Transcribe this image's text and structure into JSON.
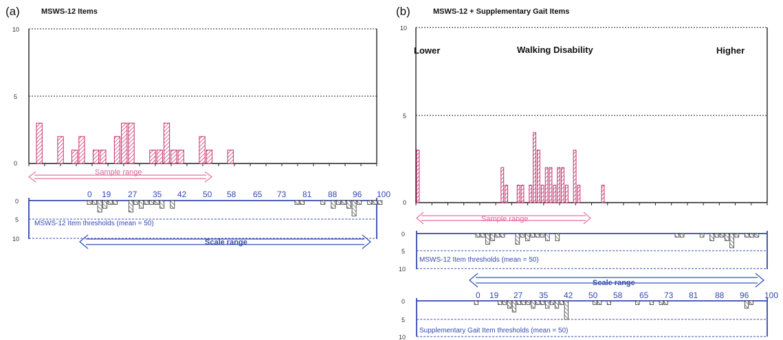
{
  "panels": {
    "a": {
      "letter": "(a)",
      "title": "MSWS-12 Items"
    },
    "b": {
      "letter": "(b)",
      "title": "MSWS-12 + Supplementary Gait Items"
    }
  },
  "labels": {
    "lower": "Lower",
    "walking_disability": "Walking Disability",
    "higher": "Higher",
    "sample_range": "Sample range",
    "scale_range": "Scale range",
    "msws_thresholds": "MSWS-12 Item thresholds (mean = 50)",
    "supp_thresholds": "Supplementary Gait Item thresholds (mean = 50)"
  },
  "colors": {
    "person_bar": "#c2185b",
    "threshold_bar": "#333333",
    "axis_blue": "#3348b0",
    "sample_arrow": "#e8709f",
    "scale_arrow": "#3355b5"
  },
  "chart_data": [
    {
      "id": "a-persons",
      "type": "bar",
      "title": "MSWS-12 Items",
      "xlim": [
        0,
        100
      ],
      "ylim": [
        0,
        10
      ],
      "yticks": [
        "0",
        "5",
        "10"
      ],
      "values": [
        3,
        0,
        0,
        2,
        0,
        1,
        2,
        0,
        1,
        1,
        0,
        2,
        3,
        3,
        0,
        0,
        1,
        1,
        3,
        1,
        1,
        0,
        0,
        2,
        1,
        0,
        0,
        1
      ]
    },
    {
      "id": "a-thresholds",
      "type": "bar",
      "title": "MSWS-12 Item thresholds (mean = 50)",
      "xlim": [
        0,
        100
      ],
      "ylim": [
        0,
        10
      ],
      "yticks": [
        "0",
        "5",
        "10"
      ],
      "scale_ticks": [
        "0",
        "19",
        "27",
        "35",
        "42",
        "50",
        "58",
        "65",
        "73",
        "81",
        "88",
        "96",
        "100"
      ],
      "values": [
        1,
        1,
        3,
        2,
        1,
        1,
        0,
        0,
        3,
        1,
        2,
        1,
        1,
        1,
        2,
        0,
        2,
        0,
        0,
        0,
        0,
        0,
        0,
        0,
        0,
        0,
        0,
        0,
        0,
        0,
        0,
        0,
        0,
        0,
        0,
        0,
        0,
        0,
        0,
        0,
        1,
        1,
        0,
        0,
        0,
        1,
        0,
        2,
        1,
        1,
        2,
        4,
        1,
        0,
        1,
        1,
        1
      ]
    },
    {
      "id": "b-persons",
      "type": "bar",
      "title": "MSWS-12 + Supplementary Gait Items",
      "xlim": [
        0,
        100
      ],
      "ylim": [
        0,
        10
      ],
      "yticks": [
        "0",
        "5",
        "10"
      ],
      "values": [
        3,
        0,
        0,
        0,
        0,
        0,
        0,
        0,
        0,
        0,
        0,
        0,
        0,
        0,
        0,
        0,
        0,
        0,
        0,
        0,
        0,
        2,
        1,
        0,
        0,
        1,
        1,
        0,
        1,
        4,
        3,
        1,
        2,
        2,
        1,
        2,
        2,
        1,
        0,
        3,
        1,
        0,
        0,
        0,
        0,
        0,
        1
      ]
    },
    {
      "id": "b-msws-thresholds",
      "type": "bar",
      "title": "MSWS-12 Item thresholds (mean = 50)",
      "xlim": [
        0,
        100
      ],
      "ylim": [
        0,
        10
      ],
      "yticks": [
        "0",
        "5",
        "10"
      ],
      "values": [
        1,
        1,
        3,
        2,
        1,
        1,
        0,
        0,
        3,
        1,
        2,
        1,
        1,
        1,
        2,
        0,
        2,
        0,
        0,
        0,
        0,
        0,
        0,
        0,
        0,
        0,
        0,
        0,
        0,
        0,
        0,
        0,
        0,
        0,
        0,
        0,
        0,
        0,
        0,
        0,
        1,
        1,
        0,
        0,
        0,
        1,
        0,
        2,
        1,
        1,
        2,
        4,
        1,
        0,
        1,
        1,
        1
      ]
    },
    {
      "id": "b-supp-thresholds",
      "type": "bar",
      "title": "Supplementary Gait Item thresholds (mean = 50)",
      "xlim": [
        0,
        100
      ],
      "ylim": [
        0,
        10
      ],
      "yticks": [
        "0",
        "5",
        "10"
      ],
      "scale_ticks": [
        "0",
        "19",
        "27",
        "35",
        "42",
        "50",
        "58",
        "65",
        "73",
        "81",
        "88",
        "96",
        "100"
      ],
      "values": [
        1,
        0,
        0,
        0,
        0,
        1,
        1,
        2,
        3,
        1,
        1,
        1,
        2,
        1,
        1,
        2,
        1,
        2,
        1,
        5,
        0,
        0,
        0,
        0,
        0,
        1,
        1,
        0,
        1,
        0,
        0,
        0,
        0,
        0,
        1,
        0,
        0,
        1,
        0,
        1,
        1,
        0,
        0,
        0,
        0,
        0,
        0,
        0,
        0,
        0,
        0,
        0,
        0,
        0,
        0,
        0,
        0,
        2,
        1,
        0
      ]
    }
  ]
}
